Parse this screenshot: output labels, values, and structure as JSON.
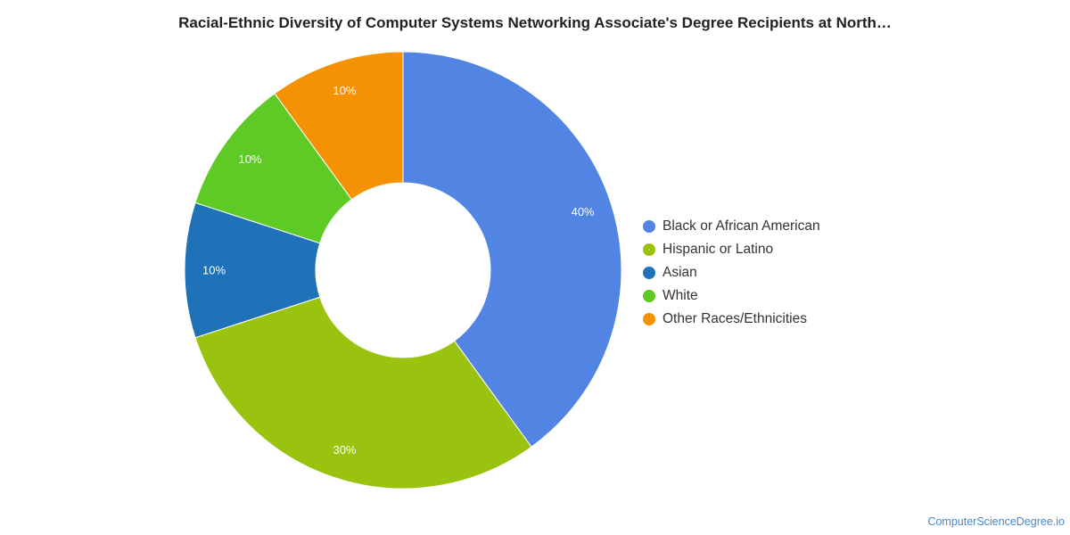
{
  "chart_data": {
    "type": "pie",
    "title": "Racial-Ethnic Diversity of Computer Systems Networking Associate's Degree Recipients at North…",
    "donut": true,
    "legend_position": "right",
    "categories": [
      "Black or African American",
      "Hispanic or Latino",
      "Asian",
      "White",
      "Other Races/Ethnicities"
    ],
    "values": [
      40,
      30,
      10,
      10,
      10
    ],
    "labels": [
      "40%",
      "30%",
      "10%",
      "10%",
      "10%"
    ],
    "colors": [
      "#5285e3",
      "#99c30e",
      "#1f72b8",
      "#5fca26",
      "#f59203"
    ]
  },
  "credit": "ComputerScienceDegree.io"
}
